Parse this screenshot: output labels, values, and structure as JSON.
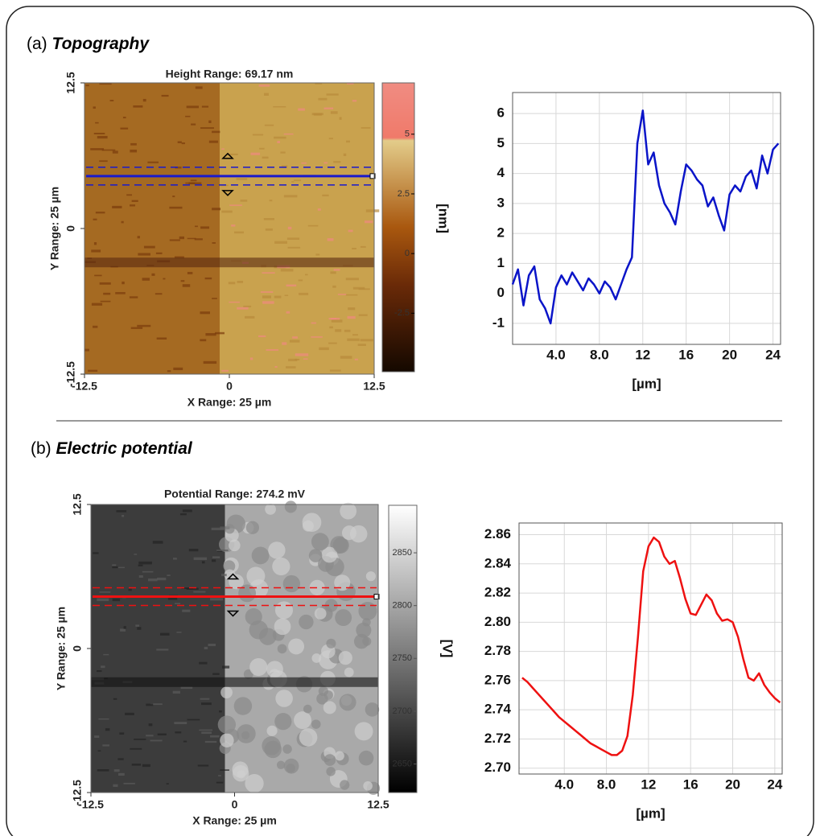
{
  "panels": [
    {
      "label": "(a)",
      "title": "Topography"
    },
    {
      "label": "(b)",
      "title": "Electric potential"
    }
  ],
  "chart_data": [
    {
      "type": "map",
      "title": "Height Range:  69.17 nm",
      "xlabel": "X Range: 25 µm",
      "ylabel": "Y Range: 25 µm",
      "xlim": [
        -12.5,
        12.5
      ],
      "ylim": [
        -12.5,
        12.5
      ],
      "xticks": [
        -12.5,
        0,
        12.5
      ],
      "yticks": [
        -12.5,
        0,
        12.5
      ],
      "clim": [
        -4.95,
        7.15
      ],
      "cticks": [
        -2.5,
        0,
        2.5,
        5
      ],
      "line_color": "#1a1acc"
    },
    {
      "type": "line",
      "xlabel": "[µm]",
      "ylabel": "[nm]",
      "grid": true,
      "xlim": [
        0,
        24.7
      ],
      "ylim": [
        -1.7,
        6.7
      ],
      "xticks": [
        {
          "value": 4,
          "label": "4.0"
        },
        {
          "value": 8,
          "label": "8.0"
        },
        12,
        16,
        20,
        24
      ],
      "yticks": [
        -1,
        0,
        1,
        2,
        3,
        4,
        5,
        6
      ],
      "x": [
        0,
        0.5,
        1,
        1.5,
        2,
        2.5,
        3,
        3.5,
        4,
        4.5,
        5,
        5.5,
        6,
        6.5,
        7,
        7.5,
        8,
        8.5,
        9,
        9.5,
        10,
        10.5,
        11,
        11.5,
        12,
        12.5,
        13,
        13.5,
        14,
        14.5,
        15,
        15.5,
        16,
        16.5,
        17,
        17.5,
        18,
        18.5,
        19,
        19.5,
        20,
        20.5,
        21,
        21.5,
        22,
        22.5,
        23,
        23.5,
        24,
        24.5
      ],
      "series": [
        {
          "color": "#0a14c8",
          "values": [
            0.3,
            0.8,
            -0.4,
            0.6,
            0.9,
            -0.2,
            -0.5,
            -1.0,
            0.2,
            0.6,
            0.3,
            0.7,
            0.4,
            0.1,
            0.5,
            0.3,
            0.0,
            0.4,
            0.2,
            -0.2,
            0.3,
            0.8,
            1.2,
            5.0,
            6.1,
            4.3,
            4.7,
            3.6,
            3.0,
            2.7,
            2.3,
            3.4,
            4.3,
            4.1,
            3.8,
            3.6,
            2.9,
            3.2,
            2.6,
            2.1,
            3.3,
            3.6,
            3.4,
            3.9,
            4.1,
            3.5,
            4.6,
            4.0,
            4.8,
            5.0
          ]
        }
      ]
    },
    {
      "type": "map",
      "title": "Potential Range:  274.2 mV",
      "xlabel": "X Range: 25 µm",
      "ylabel": "Y Range: 25 µm",
      "xlim": [
        -12.5,
        12.5
      ],
      "ylim": [
        -12.5,
        12.5
      ],
      "xticks": [
        -12.5,
        0,
        12.5
      ],
      "yticks": [
        -12.5,
        0,
        12.5
      ],
      "clim": [
        2623,
        2895
      ],
      "cticks": [
        2650,
        2700,
        2750,
        2800,
        2850
      ],
      "line_color": "#ee1111"
    },
    {
      "type": "line",
      "xlabel": "[µm]",
      "ylabel": "[V]",
      "grid": true,
      "xlim": [
        -0.3,
        24.7
      ],
      "ylim": [
        2.696,
        2.868
      ],
      "xticks": [
        {
          "value": 4,
          "label": "4.0"
        },
        {
          "value": 8,
          "label": "8.0"
        },
        12,
        16,
        20,
        24
      ],
      "yticks": [
        {
          "value": 2.7,
          "label": "2.70"
        },
        2.72,
        2.74,
        2.76,
        2.78,
        {
          "value": 2.8,
          "label": "2.80"
        },
        2.82,
        2.84,
        2.86
      ],
      "x": [
        0,
        0.5,
        1,
        1.5,
        2,
        2.5,
        3,
        3.5,
        4,
        4.5,
        5,
        5.5,
        6,
        6.5,
        7,
        7.5,
        8,
        8.5,
        9,
        9.5,
        10,
        10.5,
        11,
        11.5,
        12,
        12.5,
        13,
        13.5,
        14,
        14.5,
        15,
        15.5,
        16,
        16.5,
        17,
        17.5,
        18,
        18.5,
        19,
        19.5,
        20,
        20.5,
        21,
        21.5,
        22,
        22.5,
        23,
        23.5,
        24,
        24.5
      ],
      "series": [
        {
          "color": "#ee1111",
          "values": [
            2.762,
            2.759,
            2.755,
            2.751,
            2.747,
            2.743,
            2.739,
            2.735,
            2.732,
            2.729,
            2.726,
            2.723,
            2.72,
            2.717,
            2.715,
            2.713,
            2.711,
            2.709,
            2.709,
            2.712,
            2.722,
            2.75,
            2.79,
            2.835,
            2.852,
            2.858,
            2.855,
            2.845,
            2.84,
            2.842,
            2.83,
            2.816,
            2.806,
            2.805,
            2.812,
            2.819,
            2.815,
            2.806,
            2.801,
            2.802,
            2.8,
            2.79,
            2.775,
            2.762,
            2.76,
            2.765,
            2.757,
            2.752,
            2.748,
            2.745
          ]
        }
      ]
    }
  ]
}
